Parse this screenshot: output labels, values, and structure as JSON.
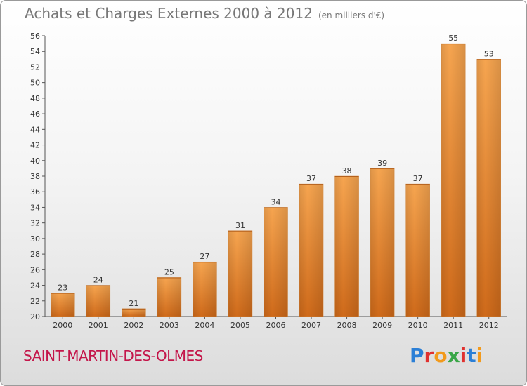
{
  "header": {
    "title": "Achats et Charges Externes 2000 à 2012",
    "unit": "(en milliers d'€)"
  },
  "footer": {
    "commune": "SAINT-MARTIN-DES-OLMES",
    "logo_text": "Proxiti",
    "logo_colors": [
      "#2b7fd6",
      "#e0312f",
      "#f29a1c",
      "#3aa648",
      "#e0312f",
      "#2b7fd6",
      "#f29a1c"
    ]
  },
  "chart_data": {
    "type": "bar",
    "title": "Achats et Charges Externes 2000 à 2012",
    "subtitle": "(en milliers d'€)",
    "categories": [
      "2000",
      "2001",
      "2002",
      "2003",
      "2004",
      "2005",
      "2006",
      "2007",
      "2008",
      "2009",
      "2010",
      "2011",
      "2012"
    ],
    "values": [
      23,
      24,
      21,
      25,
      27,
      31,
      34,
      37,
      38,
      39,
      37,
      55,
      53
    ],
    "data_labels": [
      "23",
      "24",
      "21",
      "25",
      "27",
      "31",
      "34",
      "37",
      "38",
      "39",
      "37",
      "55",
      "53"
    ],
    "ylim": [
      20,
      56
    ],
    "yticks": [
      "20",
      "22",
      "24",
      "26",
      "28",
      "30",
      "32",
      "34",
      "36",
      "38",
      "40",
      "42",
      "44",
      "46",
      "48",
      "50",
      "52",
      "54",
      "56"
    ],
    "grid": false,
    "bar_color": "#e8862e"
  }
}
